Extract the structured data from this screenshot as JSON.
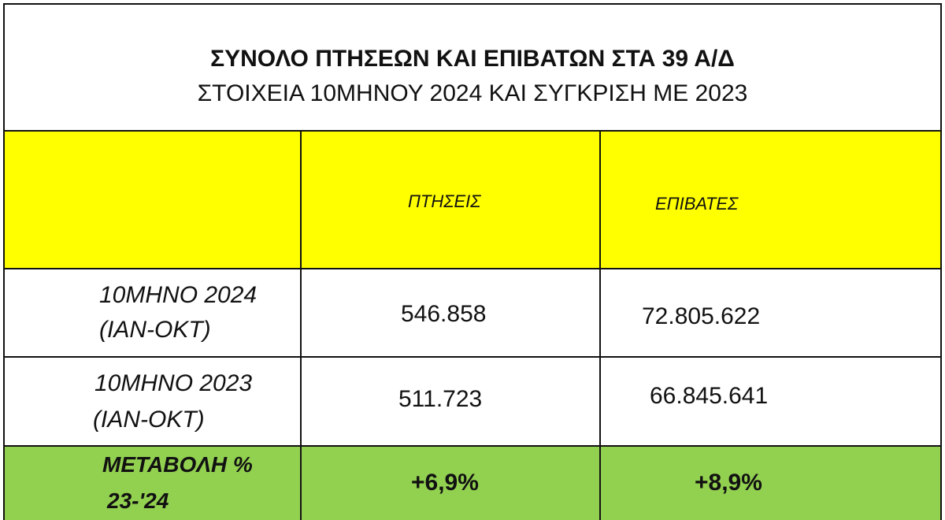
{
  "header": {
    "title": "ΣΥΝΟΛΟ ΠΤΗΣΕΩΝ ΚΑΙ ΕΠΙΒΑΤΩΝ ΣΤΑ 39 Α/Δ",
    "subtitle": "ΣΤΟΙΧΕΙΑ 10ΜΗΝΟΥ 2024 ΚΑΙ ΣΥΓΚΡΙΣΗ ΜΕ 2023"
  },
  "table": {
    "columns": [
      "ΠΤΗΣΕΙΣ",
      "ΕΠΙΒΑΤΕΣ"
    ],
    "rows": [
      {
        "label": [
          "10ΜΗΝΟ 2024",
          "(ΙΑΝ-ΟΚΤ)"
        ],
        "cells": [
          "546.858",
          "72.805.622"
        ]
      },
      {
        "label": [
          "10ΜΗΝΟ 2023",
          "(ΙΑΝ-ΟΚΤ)"
        ],
        "cells": [
          "511.723",
          "66.845.641"
        ]
      }
    ],
    "change": {
      "label": [
        "ΜΕΤΑΒΟΛΗ %",
        "23-'24"
      ],
      "cells": [
        "+6,9%",
        "+8,9%"
      ]
    }
  }
}
